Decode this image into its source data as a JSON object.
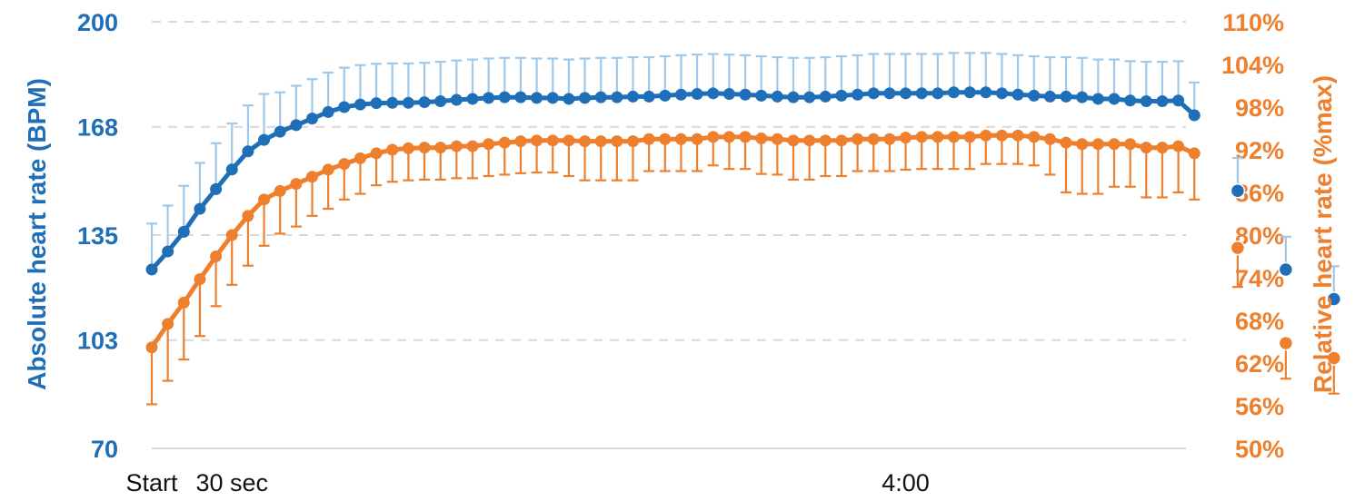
{
  "chart_data": {
    "type": "line",
    "xlabel": "",
    "x_tick_labels": [
      {
        "label": "Start",
        "index": 0
      },
      {
        "label": "30 sec",
        "index": 5
      },
      {
        "label": "4:00",
        "index": 47
      }
    ],
    "y_left": {
      "label": "Absolute heart rate (BPM)",
      "range": [
        70,
        200
      ],
      "ticks": [
        "200",
        "168",
        "135",
        "103",
        "70"
      ],
      "tick_values": [
        200,
        168,
        135,
        103,
        70
      ]
    },
    "y_right": {
      "label": "Relative heart rate (%max)",
      "range": [
        50,
        110
      ],
      "ticks": [
        "110%",
        "104%",
        "98%",
        "92%",
        "86%",
        "80%",
        "74%",
        "68%",
        "62%",
        "56%",
        "50%"
      ],
      "tick_values": [
        110,
        104,
        98,
        92,
        86,
        80,
        74,
        68,
        62,
        56,
        50
      ]
    },
    "grid": "horizontal dashed",
    "colors": {
      "absolute": "#1F6FB8",
      "absolute_error": "#9FC8EA",
      "relative": "#EE7F2D",
      "relative_error": "#EE7F2D",
      "left_axis_text": "#1F6FB8",
      "right_axis_text": "#EE7F2D"
    },
    "series": [
      {
        "axis": "left",
        "values": [
          124.5,
          130,
          136,
          143,
          149,
          155,
          160.5,
          164,
          166.5,
          168.5,
          170.5,
          172.5,
          174,
          174.8,
          175.2,
          175.3,
          175.3,
          175.5,
          175.8,
          176.2,
          176.5,
          176.8,
          177,
          177,
          176.8,
          176.8,
          176.5,
          176.8,
          177,
          177,
          177.2,
          177.2,
          177.5,
          177.8,
          178,
          178.2,
          178,
          177.8,
          177.5,
          177.2,
          177,
          177,
          177.2,
          177.5,
          177.8,
          178.2,
          178.2,
          178.2,
          178.2,
          178.2,
          178.5,
          178.5,
          178.5,
          178.2,
          177.8,
          177.5,
          177.2,
          177.2,
          177,
          176.5,
          176.5,
          176,
          175.8,
          175.8,
          176,
          171.5
        ],
        "errors": [
          14,
          14,
          14,
          14,
          14,
          14,
          14,
          14,
          12,
          12,
          12,
          12,
          12,
          12,
          12,
          12,
          12,
          12,
          12,
          12,
          12,
          12,
          12,
          12,
          12,
          12,
          12,
          12,
          12,
          12,
          12,
          12,
          12,
          12,
          12,
          12,
          12,
          12,
          12,
          12,
          12,
          12,
          12,
          12,
          12,
          12,
          12,
          12,
          12,
          12,
          12,
          12,
          12,
          12,
          12,
          12,
          12,
          12,
          12,
          12,
          12,
          12,
          12,
          12,
          12,
          10
        ],
        "extra_points": [
          {
            "position": 67.7,
            "value": 148.5,
            "error": 10
          },
          {
            "position": 70.7,
            "value": 124.5,
            "error": 10
          },
          {
            "position": 73.7,
            "value": 115.5,
            "error": 10
          }
        ]
      },
      {
        "axis": "right",
        "values": [
          64.2,
          67.5,
          70.5,
          73.8,
          77,
          80,
          82.7,
          85,
          86.2,
          87.2,
          88.2,
          89.2,
          90,
          90.8,
          91.5,
          92,
          92.2,
          92.3,
          92.3,
          92.5,
          92.5,
          92.8,
          93,
          93.2,
          93.3,
          93.3,
          93.3,
          93.2,
          93.2,
          93.2,
          93.2,
          93.5,
          93.5,
          93.5,
          93.5,
          93.8,
          93.8,
          93.8,
          93.6,
          93.5,
          93.3,
          93.3,
          93.3,
          93.3,
          93.5,
          93.5,
          93.5,
          93.7,
          93.8,
          93.8,
          93.8,
          93.8,
          94,
          94,
          94,
          93.8,
          93.5,
          93,
          92.8,
          92.8,
          92.8,
          92.8,
          92.3,
          92.3,
          92.5,
          91.5
        ],
        "errors": [
          8,
          8,
          8,
          8,
          7,
          7,
          7,
          6.5,
          6,
          6,
          5.5,
          5.5,
          5,
          5,
          4.5,
          4.5,
          4.5,
          4.5,
          4.5,
          4.5,
          4.5,
          4.5,
          4.5,
          4.5,
          4.5,
          4.5,
          5,
          5.5,
          5.5,
          5.5,
          5.5,
          4.5,
          4.5,
          4.5,
          4.5,
          4,
          4.5,
          4.5,
          5,
          5,
          5.5,
          5.5,
          5,
          5,
          4.5,
          4.5,
          4.5,
          4.5,
          4.5,
          4.5,
          4.5,
          4.5,
          4,
          4,
          4,
          4,
          5,
          7,
          7,
          7,
          6,
          6,
          7,
          7,
          6.5,
          6.5
        ],
        "extra_points": [
          {
            "position": 67.7,
            "value": 78.2,
            "error": 5.5
          },
          {
            "position": 70.7,
            "value": 64.8,
            "error": 5.0
          },
          {
            "position": 73.7,
            "value": 62.7,
            "error": 5.0
          }
        ]
      }
    ]
  }
}
